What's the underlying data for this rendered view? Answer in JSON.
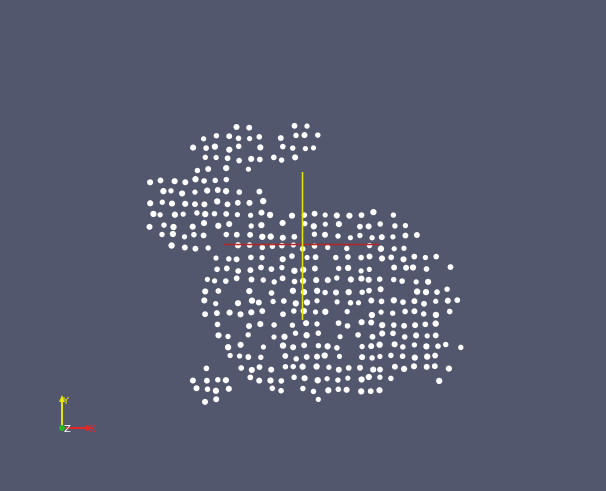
{
  "viewport": {
    "background": "#52576e",
    "point_color": "#ffffff",
    "object": "bunny-point-cloud"
  },
  "center_cross": {
    "horizontal_color": "#b32626",
    "vertical_color": "#e6e600"
  },
  "orientation_axes": {
    "x_label": "X",
    "y_label": "Y",
    "z_label": "Z",
    "x_color": "#e62626",
    "y_color": "#e6e600",
    "z_color": "#26b326"
  }
}
